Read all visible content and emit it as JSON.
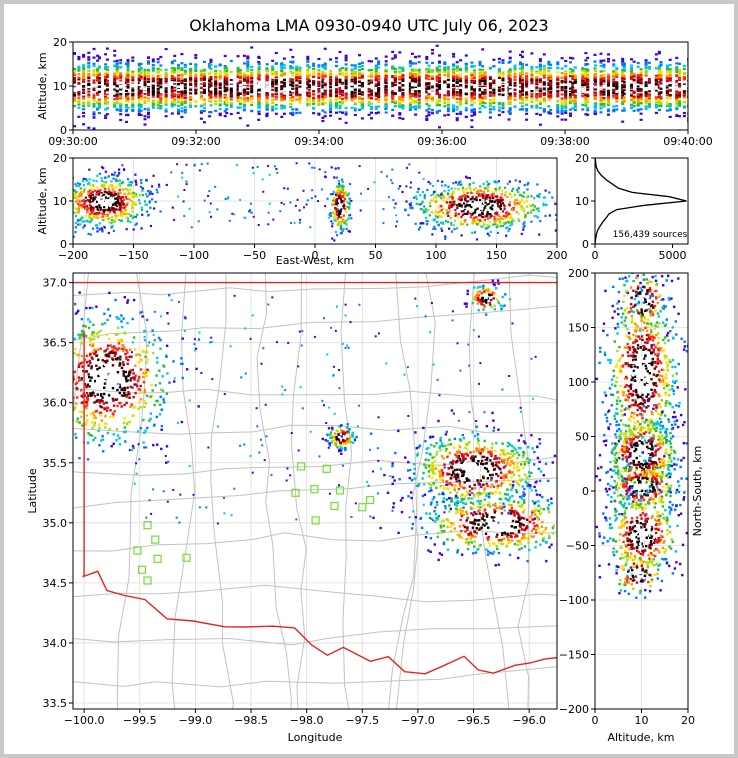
{
  "title": "Oklahoma LMA 0930-0940 UTC July 06, 2023",
  "chart_data": [
    {
      "panel": "altitude-vs-time",
      "type": "heatmap",
      "ylabel": "Altitude, km",
      "xlim": [
        "09:30:00",
        "09:40:00"
      ],
      "ylim": [
        0,
        20
      ],
      "xticks": [
        "09:30:00",
        "09:32:00",
        "09:34:00",
        "09:36:00",
        "09:38:00",
        "09:40:00"
      ],
      "yticks": [
        "0",
        "10",
        "20"
      ],
      "density_peak_altitude_km": 10
    },
    {
      "panel": "altitude-vs-east-west",
      "type": "heatmap",
      "xlabel": "East-West, km",
      "ylabel": "Altitude, km",
      "xlim": [
        -200,
        200
      ],
      "ylim": [
        0,
        20
      ],
      "xticks": [
        "−200",
        "−150",
        "−100",
        "−50",
        "0",
        "50",
        "100",
        "150",
        "200"
      ],
      "yticks": [
        "0",
        "10",
        "20"
      ],
      "clusters": [
        {
          "ew_km_center": -175,
          "alt_km_center": 10,
          "ew_km_range": [
            -200,
            -130
          ]
        },
        {
          "ew_km_center": 20,
          "alt_km_center": 9,
          "ew_km_range": [
            14,
            30
          ]
        },
        {
          "ew_km_center": 135,
          "alt_km_center": 9,
          "ew_km_range": [
            95,
            200
          ]
        }
      ]
    },
    {
      "panel": "altitude-histogram",
      "type": "line",
      "xlim": [
        0,
        6000
      ],
      "ylim": [
        0,
        20
      ],
      "xticks": [
        "0",
        "5000"
      ],
      "yticks": [
        "0",
        "10",
        "20"
      ],
      "annotation": "156,439 sources",
      "x_counts": [
        0,
        30,
        80,
        150,
        300,
        480,
        700,
        900,
        1400,
        3200,
        5900,
        4800,
        2400,
        1500,
        1100,
        700,
        400,
        180,
        80,
        40,
        10
      ],
      "y_altitude_km": [
        0,
        1,
        2,
        3,
        4,
        5,
        6,
        7,
        8,
        9,
        10,
        11,
        12,
        13,
        14,
        15,
        16,
        17,
        18,
        19,
        20
      ]
    },
    {
      "panel": "plan-view",
      "type": "scatter",
      "xlabel": "Longitude",
      "ylabel": "Latitude",
      "xlim": [
        -100.1,
        -95.75
      ],
      "ylim": [
        33.45,
        37.08
      ],
      "xticks": [
        "−100.0",
        "−99.5",
        "−99.0",
        "−98.5",
        "−98.0",
        "−97.5",
        "−97.0",
        "−96.5",
        "−96.0"
      ],
      "yticks": [
        "33.5",
        "34.0",
        "34.5",
        "35.0",
        "35.5",
        "36.0",
        "36.5",
        "37.0"
      ],
      "stations": [
        {
          "lon": -98.05,
          "lat": 35.47
        },
        {
          "lon": -97.82,
          "lat": 35.45
        },
        {
          "lon": -98.1,
          "lat": 35.25
        },
        {
          "lon": -97.93,
          "lat": 35.28
        },
        {
          "lon": -97.7,
          "lat": 35.27
        },
        {
          "lon": -97.75,
          "lat": 35.14
        },
        {
          "lon": -97.92,
          "lat": 35.02
        },
        {
          "lon": -97.5,
          "lat": 35.13
        },
        {
          "lon": -97.43,
          "lat": 35.19
        },
        {
          "lon": -99.43,
          "lat": 34.98
        },
        {
          "lon": -99.36,
          "lat": 34.86
        },
        {
          "lon": -99.52,
          "lat": 34.77
        },
        {
          "lon": -99.34,
          "lat": 34.7
        },
        {
          "lon": -99.08,
          "lat": 34.71
        },
        {
          "lon": -99.48,
          "lat": 34.61
        },
        {
          "lon": -99.43,
          "lat": 34.52
        }
      ],
      "clusters": [
        {
          "lon": -99.8,
          "lat": 36.2
        },
        {
          "lon": -97.7,
          "lat": 35.72
        },
        {
          "lon": -96.5,
          "lat": 35.45
        },
        {
          "lon": -96.3,
          "lat": 35.0
        },
        {
          "lon": -96.4,
          "lat": 36.88
        }
      ]
    },
    {
      "panel": "north-south-vs-altitude",
      "type": "heatmap",
      "xlabel": "Altitude, km",
      "ylabel": "North-South, km",
      "xlim": [
        0,
        20
      ],
      "ylim": [
        -200,
        200
      ],
      "xticks": [
        "0",
        "10",
        "20"
      ],
      "yticks": [
        "−200",
        "−150",
        "−100",
        "−50",
        "0",
        "50",
        "100",
        "150",
        "200"
      ]
    }
  ],
  "colors": {
    "background": "#c8c8c8",
    "plot_bg": "#ffffff",
    "state_border": "#e8231c",
    "county_lines": "#c2c2c2",
    "station_marker": "#77dd33",
    "density_scale": [
      "#3b00e6",
      "#0077ff",
      "#00c8e0",
      "#1fbf3a",
      "#a8e000",
      "#ffe000",
      "#ff9000",
      "#ff2a10",
      "#c8001a",
      "#600000",
      "#000000",
      "#ffffff"
    ]
  }
}
